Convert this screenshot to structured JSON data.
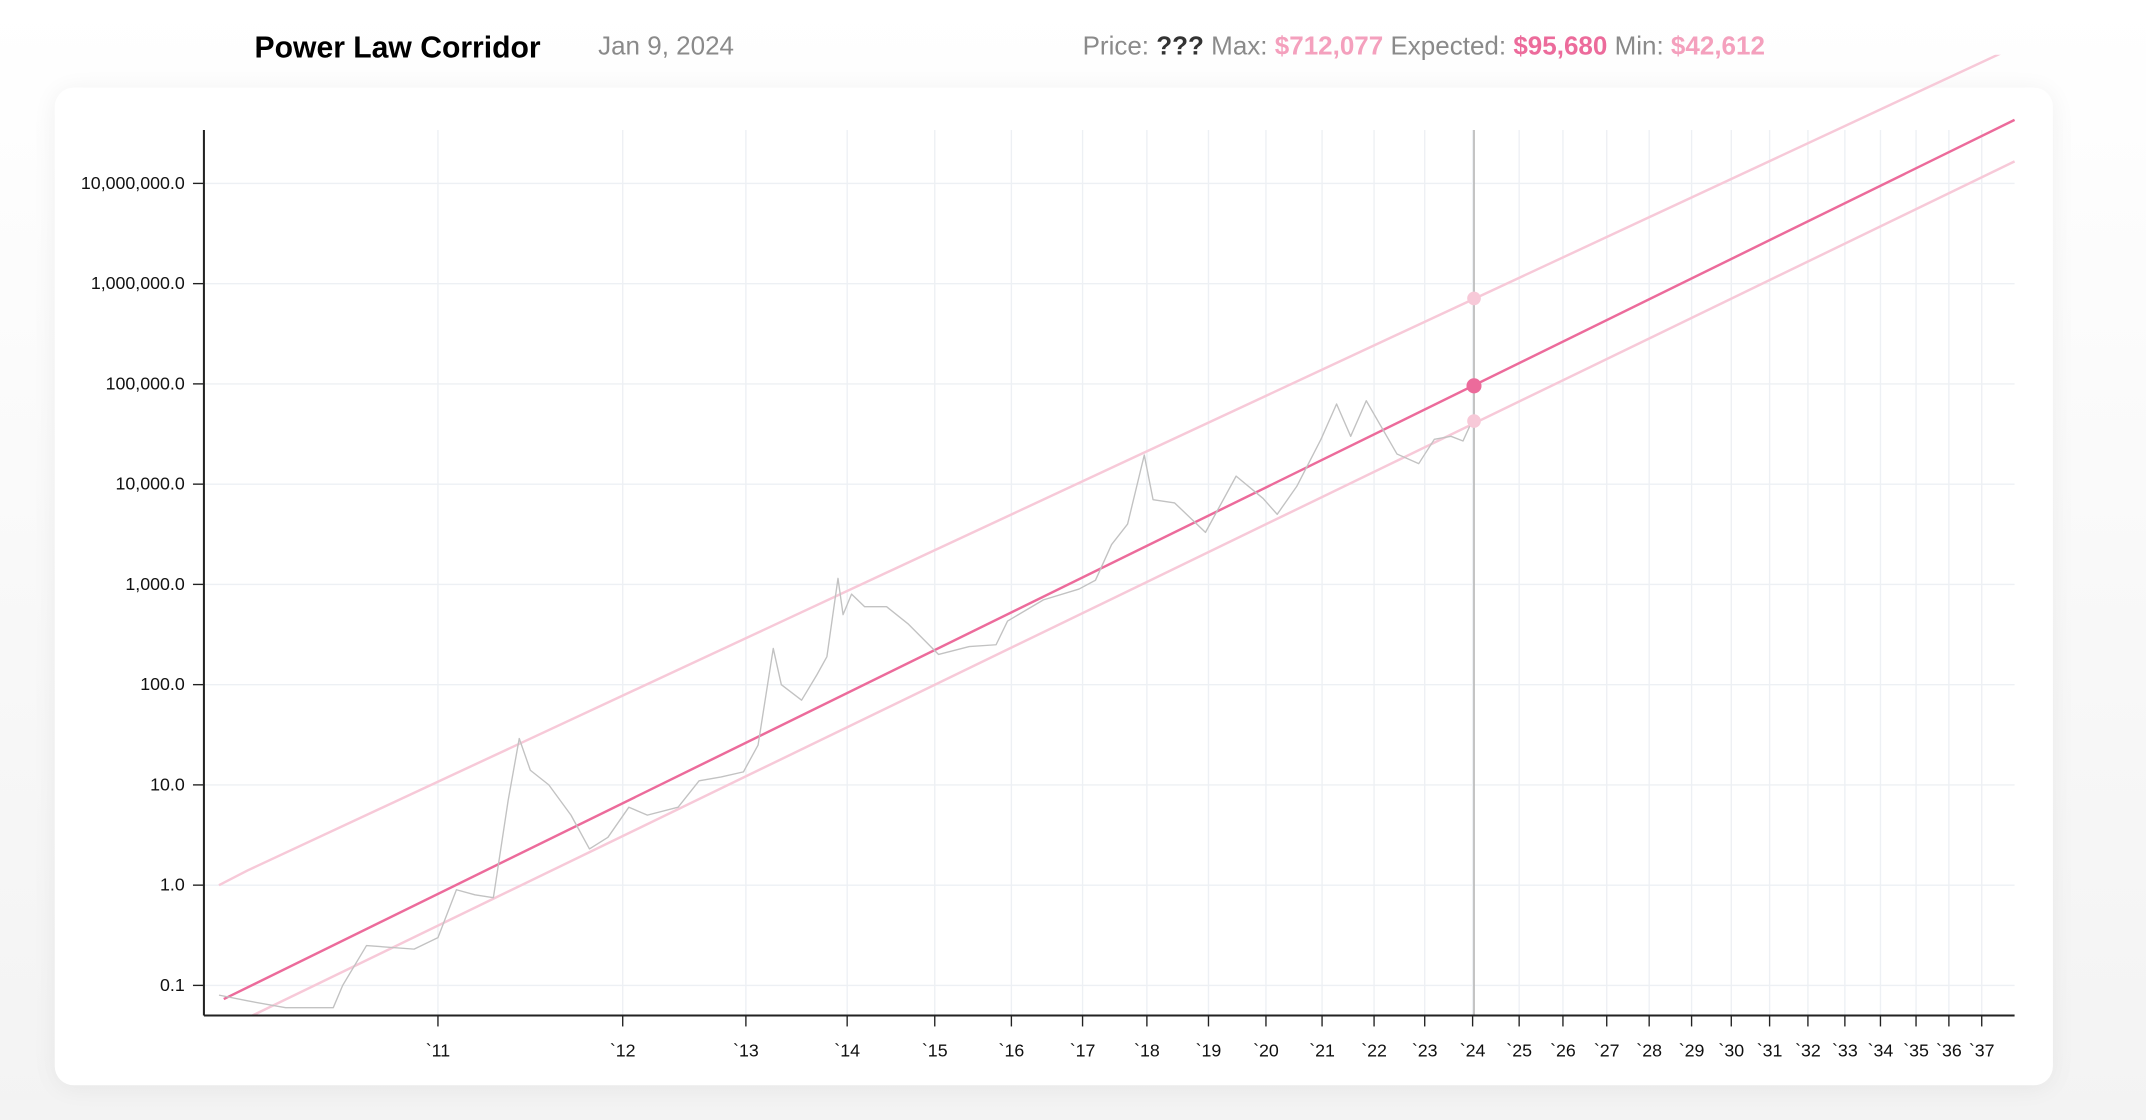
{
  "header": {
    "title": "Power Law Corridor",
    "date": "Jan 9, 2024",
    "price_label": "Price:",
    "price_value": "???",
    "max_label": "Max:",
    "max_value": "$712,077",
    "expected_label": "Expected:",
    "expected_value": "$95,680",
    "min_label": "Min:",
    "min_value": "$42,612"
  },
  "colors": {
    "expected": "#ec6b9b",
    "corridor": "#f7c9d8",
    "price": "#c2c2c2",
    "grid": "#edf0f4",
    "axis": "#222222",
    "cursor": "#b8b8b8"
  },
  "chart_data": {
    "type": "line",
    "title": "Power Law Corridor",
    "xlabel": "",
    "ylabel": "",
    "y_scale": "log",
    "ylim": [
      0.05,
      40000000
    ],
    "grid": true,
    "y_ticks": [
      {
        "value": 10000000,
        "label": "10,000,000.0"
      },
      {
        "value": 1000000,
        "label": "1,000,000.0"
      },
      {
        "value": 100000,
        "label": "100,000.0"
      },
      {
        "value": 10000,
        "label": "10,000.0"
      },
      {
        "value": 1000,
        "label": "1,000.0"
      },
      {
        "value": 100,
        "label": "100.0"
      },
      {
        "value": 10,
        "label": "10.0"
      },
      {
        "value": 1,
        "label": "1.0"
      },
      {
        "value": 0.1,
        "label": "0.1"
      }
    ],
    "x_ticks": [
      {
        "year": 2011,
        "label": "`11"
      },
      {
        "year": 2012,
        "label": "`12"
      },
      {
        "year": 2013,
        "label": "`13"
      },
      {
        "year": 2014,
        "label": "`14"
      },
      {
        "year": 2015,
        "label": "`15"
      },
      {
        "year": 2016,
        "label": "`16"
      },
      {
        "year": 2017,
        "label": "`17"
      },
      {
        "year": 2018,
        "label": "`18"
      },
      {
        "year": 2019,
        "label": "`19"
      },
      {
        "year": 2020,
        "label": "`20"
      },
      {
        "year": 2021,
        "label": "`21"
      },
      {
        "year": 2022,
        "label": "`22"
      },
      {
        "year": 2023,
        "label": "`23"
      },
      {
        "year": 2024,
        "label": "`24"
      },
      {
        "year": 2025,
        "label": "`25"
      },
      {
        "year": 2026,
        "label": "`26"
      },
      {
        "year": 2027,
        "label": "`27"
      },
      {
        "year": 2028,
        "label": "`28"
      },
      {
        "year": 2029,
        "label": "`29"
      },
      {
        "year": 2030,
        "label": "`30"
      },
      {
        "year": 2031,
        "label": "`31"
      },
      {
        "year": 2032,
        "label": "`32"
      },
      {
        "year": 2033,
        "label": "`33"
      },
      {
        "year": 2034,
        "label": "`34"
      },
      {
        "year": 2035,
        "label": "`35"
      },
      {
        "year": 2036,
        "label": "`36"
      },
      {
        "year": 2037,
        "label": "`37"
      }
    ],
    "cursor": {
      "date": 2024.03,
      "max": 712077,
      "expected": 95680,
      "min": 42612
    },
    "series": [
      {
        "name": "Max",
        "points": [
          [
            2010.54,
            1.0
          ],
          [
            2010.6,
            1.4
          ],
          [
            2038.0,
            230000000
          ]
        ]
      },
      {
        "name": "Expected",
        "points": [
          [
            2010.55,
            0.073
          ],
          [
            2038.0,
            43000000
          ]
        ]
      },
      {
        "name": "Min",
        "points": [
          [
            2010.61,
            0.05
          ],
          [
            2038.0,
            16600000
          ]
        ]
      },
      {
        "name": "Price",
        "points": [
          [
            2010.54,
            0.08
          ],
          [
            2010.6,
            0.07
          ],
          [
            2010.68,
            0.06
          ],
          [
            2010.78,
            0.06
          ],
          [
            2010.8,
            0.1
          ],
          [
            2010.85,
            0.25
          ],
          [
            2010.95,
            0.23
          ],
          [
            2011.0,
            0.3
          ],
          [
            2011.1,
            0.9
          ],
          [
            2011.2,
            0.8
          ],
          [
            2011.3,
            0.75
          ],
          [
            2011.38,
            7
          ],
          [
            2011.44,
            29
          ],
          [
            2011.5,
            14
          ],
          [
            2011.6,
            10
          ],
          [
            2011.72,
            5
          ],
          [
            2011.82,
            2.3
          ],
          [
            2011.92,
            3
          ],
          [
            2012.05,
            6
          ],
          [
            2012.2,
            5
          ],
          [
            2012.45,
            6
          ],
          [
            2012.62,
            11
          ],
          [
            2012.8,
            12
          ],
          [
            2012.98,
            13.5
          ],
          [
            2013.12,
            25
          ],
          [
            2013.27,
            230
          ],
          [
            2013.35,
            100
          ],
          [
            2013.55,
            70
          ],
          [
            2013.7,
            125
          ],
          [
            2013.8,
            190
          ],
          [
            2013.91,
            1150
          ],
          [
            2013.96,
            500
          ],
          [
            2014.05,
            800
          ],
          [
            2014.2,
            600
          ],
          [
            2014.45,
            600
          ],
          [
            2014.7,
            400
          ],
          [
            2015.05,
            200
          ],
          [
            2015.45,
            240
          ],
          [
            2015.8,
            250
          ],
          [
            2015.95,
            430
          ],
          [
            2016.45,
            700
          ],
          [
            2016.95,
            900
          ],
          [
            2017.2,
            1100
          ],
          [
            2017.45,
            2500
          ],
          [
            2017.7,
            4000
          ],
          [
            2017.96,
            19500
          ],
          [
            2018.1,
            7000
          ],
          [
            2018.45,
            6500
          ],
          [
            2018.95,
            3300
          ],
          [
            2019.48,
            12000
          ],
          [
            2019.95,
            7200
          ],
          [
            2020.2,
            5000
          ],
          [
            2020.55,
            9500
          ],
          [
            2020.98,
            28000
          ],
          [
            2021.28,
            63000
          ],
          [
            2021.55,
            30000
          ],
          [
            2021.85,
            68000
          ],
          [
            2022.45,
            20000
          ],
          [
            2022.88,
            16000
          ],
          [
            2023.2,
            28000
          ],
          [
            2023.55,
            30000
          ],
          [
            2023.8,
            27000
          ],
          [
            2024.02,
            46000
          ]
        ]
      }
    ]
  }
}
